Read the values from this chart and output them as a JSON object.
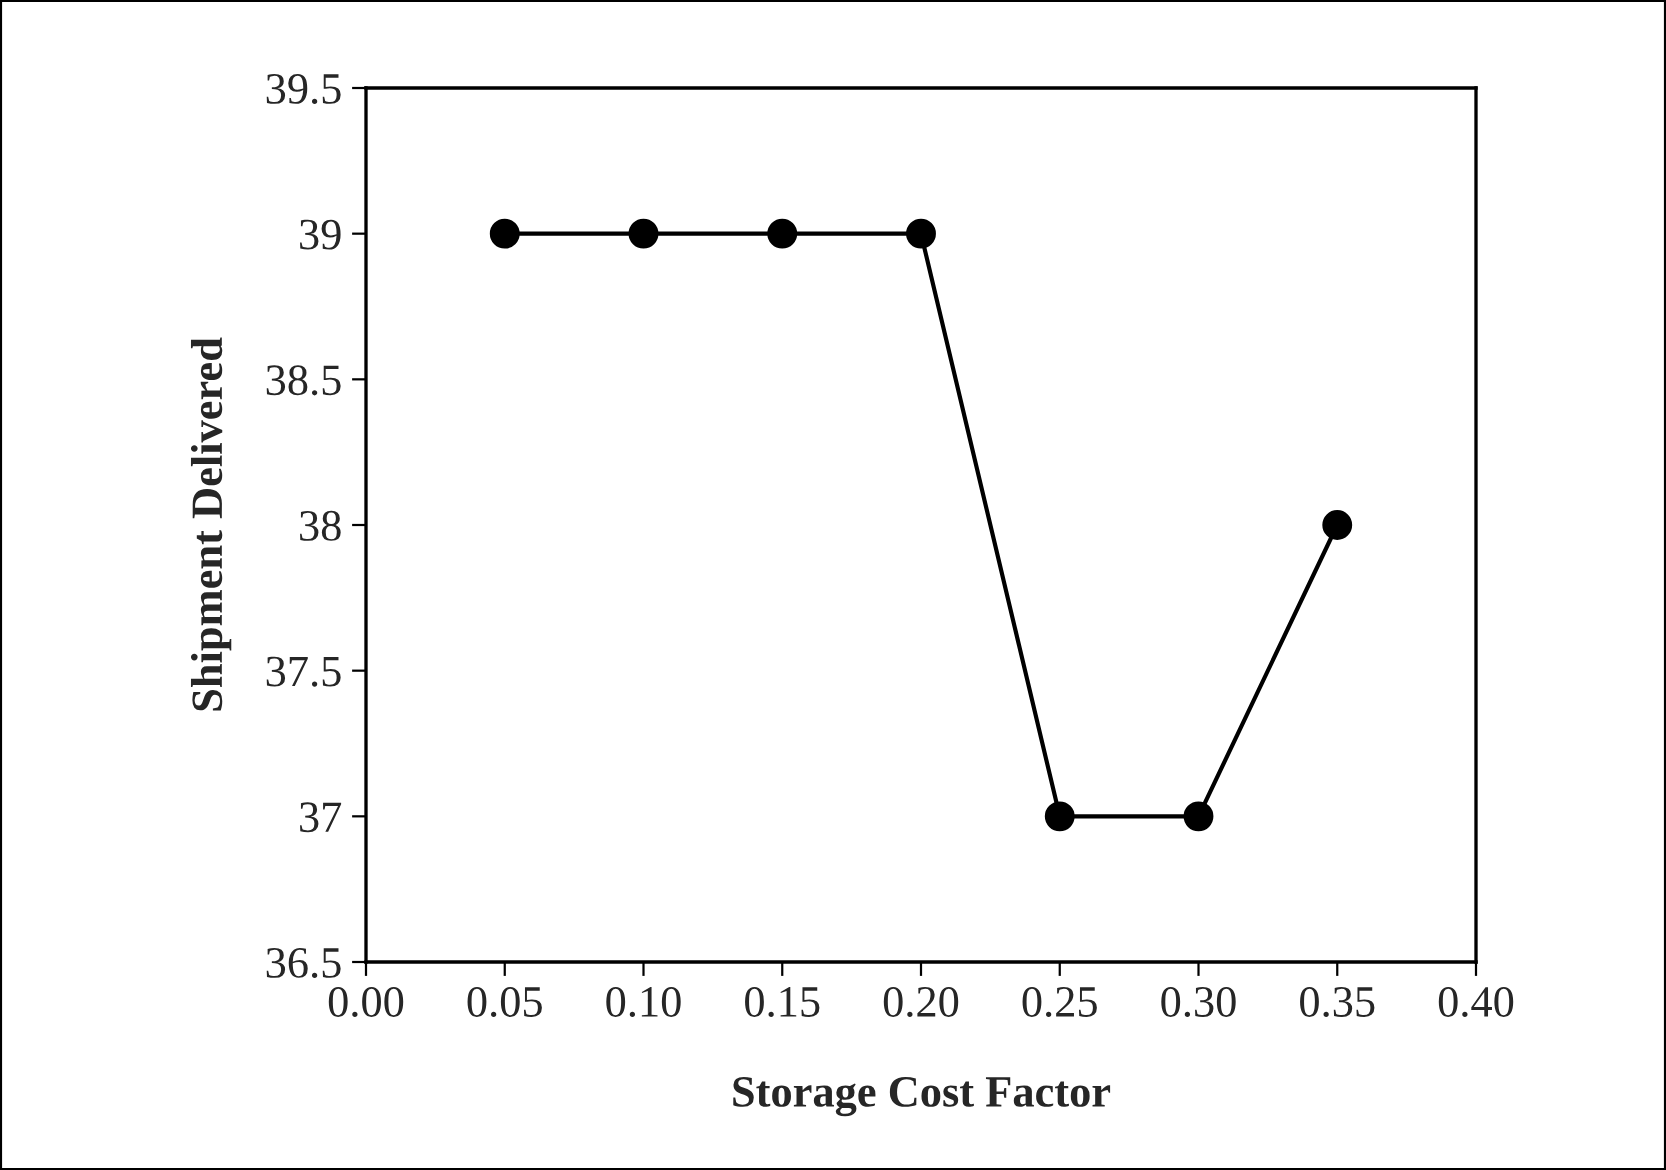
{
  "chart_data": {
    "type": "line",
    "xlabel": "Storage Cost Factor",
    "ylabel": "Shipment Delivered",
    "x": [
      0.05,
      0.1,
      0.15,
      0.2,
      0.25,
      0.3,
      0.35
    ],
    "series": [
      {
        "color": "#000000",
        "values": [
          39,
          39,
          39,
          39,
          37,
          37,
          38
        ]
      }
    ],
    "xlim": [
      0,
      0.4
    ],
    "xticks": [
      {
        "value": 0,
        "label": "0.00"
      },
      {
        "value": 0.05,
        "label": "0.05"
      },
      {
        "value": 0.1,
        "label": "0.10"
      },
      {
        "value": 0.15,
        "label": "0.15"
      },
      {
        "value": 0.2,
        "label": "0.20"
      },
      {
        "value": 0.25,
        "label": "0.25"
      },
      {
        "value": 0.3,
        "label": "0.30"
      },
      {
        "value": 0.35,
        "label": "0.35"
      },
      {
        "value": 0.4,
        "label": "0.40"
      }
    ],
    "ylim": [
      36.5,
      39.5
    ],
    "yticks": [
      36.5,
      37,
      37.5,
      38,
      38.5,
      39,
      39.5
    ],
    "marker": "circle",
    "line_style": "solid",
    "grid": false,
    "legend": false
  }
}
